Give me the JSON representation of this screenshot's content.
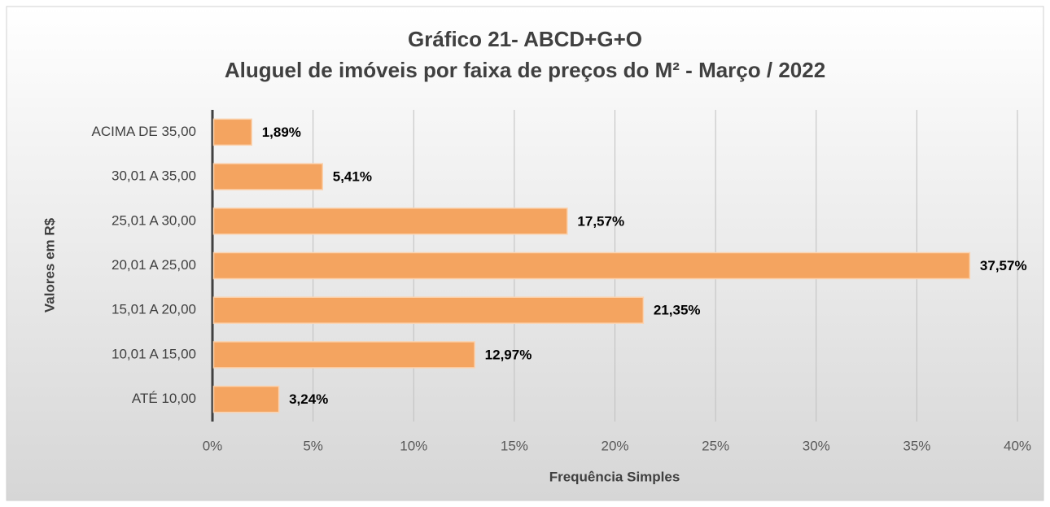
{
  "chart_data": {
    "type": "bar",
    "orientation": "horizontal",
    "title": "Gráfico 21- ABCD+G+O",
    "subtitle": "Aluguel de imóveis por faixa de preços do M² - Março / 2022",
    "x_label": "Frequência Simples",
    "y_label": "Valores em R$",
    "categories": [
      "ACIMA DE 35,00",
      "30,01 A 35,00",
      "25,01 A 30,00",
      "20,01 A 25,00",
      "15,01 A 20,00",
      "10,01 A 15,00",
      "ATÉ 10,00"
    ],
    "values": [
      1.89,
      5.41,
      17.57,
      37.57,
      21.35,
      12.97,
      3.24
    ],
    "value_labels": [
      "1,89%",
      "5,41%",
      "17,57%",
      "37,57%",
      "21,35%",
      "12,97%",
      "3,24%"
    ],
    "color": "#f4a460",
    "xlim": [
      0,
      40
    ],
    "xticks": [
      {
        "value": 0,
        "label": "0%"
      },
      {
        "value": 5,
        "label": "5%"
      },
      {
        "value": 10,
        "label": "10%"
      },
      {
        "value": 15,
        "label": "15%"
      },
      {
        "value": 20,
        "label": "20%"
      },
      {
        "value": 25,
        "label": "25%"
      },
      {
        "value": 30,
        "label": "30%"
      },
      {
        "value": 35,
        "label": "35%"
      },
      {
        "value": 40,
        "label": "40%"
      }
    ],
    "grid": true
  }
}
